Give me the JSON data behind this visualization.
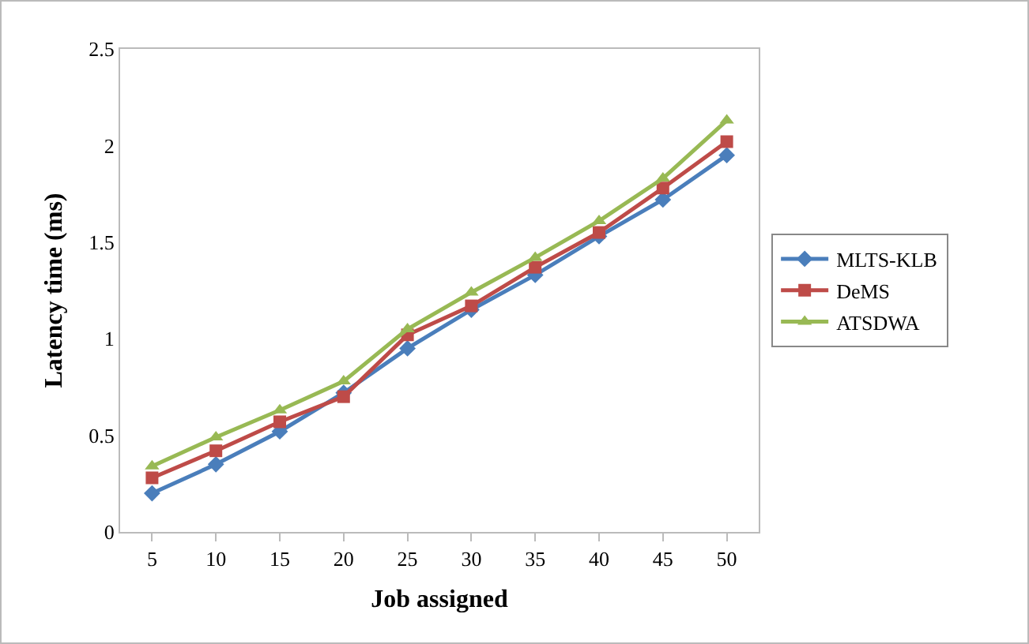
{
  "chart_data": {
    "type": "line",
    "xlabel": "Job assigned",
    "ylabel": "Latency time (ms)",
    "categories": [
      "5",
      "10",
      "15",
      "20",
      "25",
      "30",
      "35",
      "40",
      "45",
      "50"
    ],
    "ylim": [
      0,
      2.5
    ],
    "yticks": [
      0,
      0.5,
      1,
      1.5,
      2,
      2.5
    ],
    "grid": false,
    "legend": "right",
    "line_style": "solid",
    "series": [
      {
        "name": "MLTS-KLB",
        "color": "#4a7ebb",
        "marker": "diamond",
        "values": [
          0.2,
          0.35,
          0.52,
          0.72,
          0.95,
          1.15,
          1.33,
          1.53,
          1.72,
          1.95
        ]
      },
      {
        "name": "DeMS",
        "color": "#be4b48",
        "marker": "square",
        "values": [
          0.28,
          0.42,
          0.57,
          0.7,
          1.02,
          1.17,
          1.37,
          1.55,
          1.78,
          2.02
        ]
      },
      {
        "name": "ATSDWA",
        "color": "#98b954",
        "marker": "triangle",
        "values": [
          0.34,
          0.49,
          0.63,
          0.78,
          1.05,
          1.24,
          1.42,
          1.61,
          1.83,
          2.13
        ]
      }
    ]
  }
}
